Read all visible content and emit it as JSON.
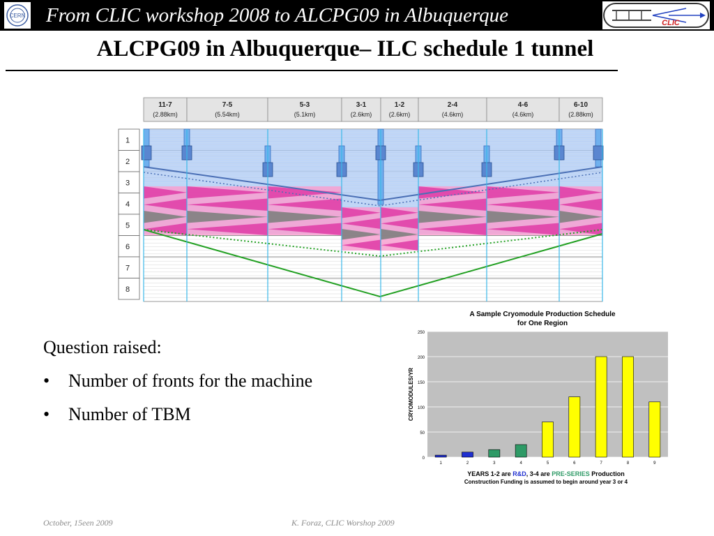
{
  "header": {
    "title": "From CLIC workshop 2008 to ALCPG09 in Albuquerque",
    "bar_color": "#000000"
  },
  "logos": {
    "left": "cern-logo",
    "left_text": "CERN",
    "right": "clic-logo",
    "right_text": "CLIC"
  },
  "slide": {
    "title": "ALCPG09 in Albuquerque– ILC schedule 1 tunnel"
  },
  "schedule_figure": {
    "columns": [
      {
        "label": "11-7",
        "length": "(2.88km)"
      },
      {
        "label": "7-5",
        "length": "(5.54km)"
      },
      {
        "label": "5-3",
        "length": "(5.1km)"
      },
      {
        "label": "3-1",
        "length": "(2.6km)"
      },
      {
        "label": "1-2",
        "length": "(2.6km)"
      },
      {
        "label": "2-4",
        "length": "(4.6km)"
      },
      {
        "label": "4-6",
        "length": "(4.6km)"
      },
      {
        "label": "6-10",
        "length": "(2.88km)"
      }
    ],
    "rows": [
      "1",
      "2",
      "3",
      "4",
      "5",
      "6",
      "7",
      "8"
    ],
    "colors": {
      "blue_band": "#a9c8f5",
      "magenta": "#e040a8",
      "pink": "#f7a0d0",
      "gray": "#808080",
      "green": "#22a022",
      "line_blue": "#4a6fb5"
    }
  },
  "body": {
    "intro": "Question raised:",
    "bullets": [
      "Number of fronts for the machine",
      "Number of TBM"
    ]
  },
  "chart_data": {
    "type": "bar",
    "title": "A Sample Cryomodule Production Schedule",
    "subtitle": "for One Region",
    "ylabel": "CRYOMODULES/YR",
    "categories": [
      "1",
      "2",
      "3",
      "4",
      "5",
      "6",
      "7",
      "8",
      "9"
    ],
    "values": [
      4,
      10,
      15,
      25,
      70,
      120,
      200,
      200,
      110
    ],
    "bar_colors": [
      "#1f2fd0",
      "#1f2fd0",
      "#2e9a66",
      "#2e9a66",
      "#ffff00",
      "#ffff00",
      "#ffff00",
      "#ffff00",
      "#ffff00"
    ],
    "ylim": [
      0,
      250
    ],
    "yticks": [
      "0",
      "50",
      "100",
      "150",
      "200",
      "250"
    ],
    "caption": {
      "p1": "YEARS  1-2 are ",
      "rd": "R&D",
      "p2": ", 3-4 are ",
      "ps": "PRE-SERIES",
      "p3": " Production",
      "line2": "Construction Funding is assumed to begin  around year 3 or 4"
    },
    "plot_bg": "#c0c0c0"
  },
  "footer": {
    "date": "October, 15een 2009",
    "author": "K. Foraz, CLIC Worshop 2009"
  }
}
